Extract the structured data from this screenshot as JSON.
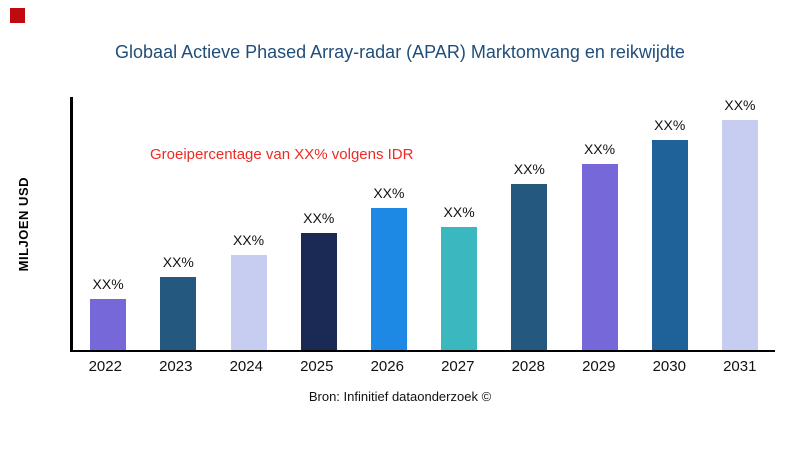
{
  "header": {
    "title": "Globaal Actieve Phased Array-radar (APAR) Marktomvang en reikwijdte"
  },
  "annotation": {
    "text": "Groeipercentage van XX% volgens IDR",
    "color": "#ee2b24"
  },
  "footer": {
    "source_text": "Bron: Infinitief dataonderzoek ©"
  },
  "accent": {
    "title_color": "#1f4e79",
    "logo_square_color": "#c00b0e",
    "axis_color": "#000000"
  },
  "chart_data": {
    "type": "bar",
    "title": "Globaal Actieve Phased Array-radar (APAR) Marktomvang en reikwijdte",
    "xlabel": "",
    "ylabel": "MILJOEN USD",
    "categories": [
      "2022",
      "2023",
      "2024",
      "2025",
      "2026",
      "2027",
      "2028",
      "2029",
      "2030",
      "2031"
    ],
    "values": [
      50,
      72,
      94,
      116,
      140,
      122,
      164,
      184,
      208,
      233
    ],
    "values_note": "relative bar heights in unlabeled units; no numeric y-axis ticks shown",
    "data_labels": [
      "XX%",
      "XX%",
      "XX%",
      "XX%",
      "XX%",
      "XX%",
      "XX%",
      "XX%",
      "XX%",
      "XX%"
    ],
    "bar_colors": [
      "#7668d8",
      "#24587f",
      "#c7cdf0",
      "#1b2a55",
      "#1e88e5",
      "#3ab7bf",
      "#24587f",
      "#7668d8",
      "#1f6299",
      "#c7cdf0"
    ],
    "ylim": [
      0,
      250
    ],
    "grid": false,
    "legend": false,
    "annotation": "Groeipercentage van XX% volgens IDR"
  }
}
